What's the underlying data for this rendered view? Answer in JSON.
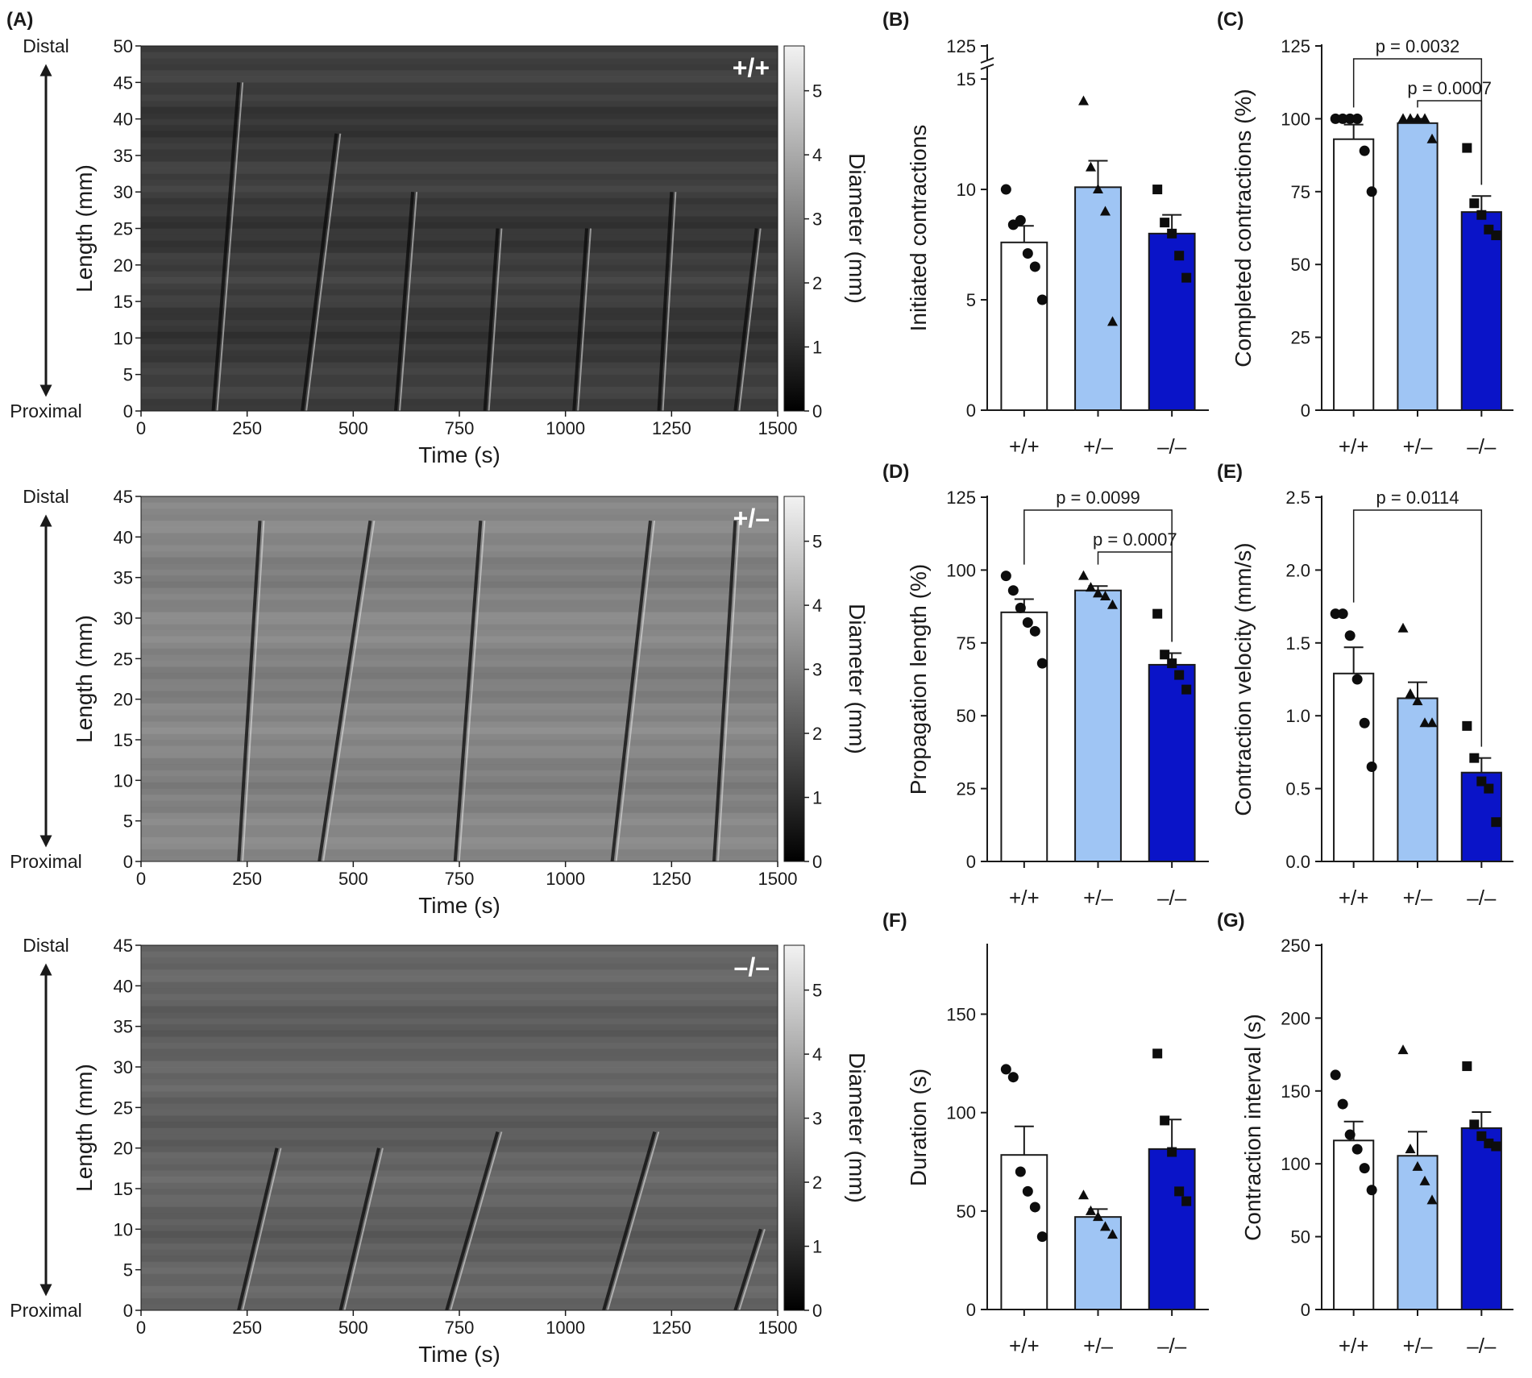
{
  "colors": {
    "wt": "#ffffff",
    "het": "#9fc5f4",
    "ko": "#0a14c8",
    "axis": "#1a1a1a"
  },
  "chart_data": [
    {
      "id": "A-1",
      "panel": "(A)",
      "type": "heatmap",
      "genotype": "+/+",
      "xlabel": "Time (s)",
      "ylabel": "Length (mm)",
      "colorbar_label": "Diameter (mm)",
      "top_label": "Distal",
      "bottom_label": "Proximal",
      "xlim": [
        0,
        1500
      ],
      "ylim": [
        0,
        50
      ],
      "x_ticks": [
        "0",
        "250",
        "500",
        "750",
        "1000",
        "1250",
        "1500"
      ],
      "y_ticks": [
        "0",
        "5",
        "10",
        "15",
        "20",
        "25",
        "30",
        "35",
        "40",
        "45",
        "50"
      ],
      "colorbar_ticks": [
        "0",
        "1",
        "2",
        "3",
        "4",
        "5"
      ],
      "colorbar_range": [
        0,
        5.7
      ],
      "base_level": 1.4,
      "waves": [
        [
          170,
          0,
          230,
          45
        ],
        [
          380,
          0,
          460,
          38
        ],
        [
          600,
          0,
          640,
          30
        ],
        [
          810,
          0,
          840,
          25
        ],
        [
          1020,
          0,
          1050,
          25
        ],
        [
          1220,
          0,
          1250,
          30
        ],
        [
          1400,
          0,
          1450,
          25
        ]
      ]
    },
    {
      "id": "A-2",
      "type": "heatmap",
      "genotype": "+/–",
      "xlabel": "Time (s)",
      "ylabel": "Length (mm)",
      "colorbar_label": "Diameter (mm)",
      "top_label": "Distal",
      "bottom_label": "Proximal",
      "xlim": [
        0,
        1500
      ],
      "ylim": [
        0,
        45
      ],
      "x_ticks": [
        "0",
        "250",
        "500",
        "750",
        "1000",
        "1250",
        "1500"
      ],
      "y_ticks": [
        "0",
        "5",
        "10",
        "15",
        "20",
        "25",
        "30",
        "35",
        "40",
        "45"
      ],
      "colorbar_ticks": [
        "0",
        "1",
        "2",
        "3",
        "4",
        "5"
      ],
      "colorbar_range": [
        0,
        5.7
      ],
      "base_level": 3.1,
      "waves": [
        [
          230,
          0,
          280,
          42
        ],
        [
          420,
          0,
          540,
          42
        ],
        [
          740,
          0,
          800,
          42
        ],
        [
          1110,
          0,
          1200,
          42
        ],
        [
          1350,
          0,
          1400,
          42
        ]
      ]
    },
    {
      "id": "A-3",
      "type": "heatmap",
      "genotype": "–/–",
      "xlabel": "Time (s)",
      "ylabel": "Length (mm)",
      "colorbar_label": "Diameter (mm)",
      "top_label": "Distal",
      "bottom_label": "Proximal",
      "xlim": [
        0,
        1500
      ],
      "ylim": [
        0,
        45
      ],
      "x_ticks": [
        "0",
        "250",
        "500",
        "750",
        "1000",
        "1250",
        "1500"
      ],
      "y_ticks": [
        "0",
        "5",
        "10",
        "15",
        "20",
        "25",
        "30",
        "35",
        "40",
        "45"
      ],
      "colorbar_ticks": [
        "0",
        "1",
        "2",
        "3",
        "4",
        "5"
      ],
      "colorbar_range": [
        0,
        5.7
      ],
      "base_level": 2.3,
      "waves": [
        [
          230,
          0,
          320,
          20
        ],
        [
          470,
          0,
          560,
          20
        ],
        [
          720,
          0,
          840,
          22
        ],
        [
          1090,
          0,
          1210,
          22
        ],
        [
          1400,
          0,
          1460,
          10
        ]
      ]
    },
    {
      "id": "B",
      "panel": "(B)",
      "type": "bar",
      "ylabel": "Initiated contractions",
      "categories": [
        "+/+",
        "+/–",
        "–/–"
      ],
      "values": [
        7.6,
        10.1,
        8.0
      ],
      "sem": [
        0.75,
        1.2,
        0.85
      ],
      "points": [
        [
          10.0,
          8.4,
          8.6,
          7.1,
          6.5,
          5.0
        ],
        [
          14.0,
          11.0,
          10.0,
          9.0,
          4.0
        ],
        [
          10.0,
          8.5,
          8.0,
          7.0,
          6.0
        ]
      ],
      "ylim": [
        0,
        16.5
      ],
      "broken_axis": true,
      "y_ticks": [
        [
          "0",
          0
        ],
        [
          "5",
          5
        ],
        [
          "10",
          10
        ],
        [
          "15",
          15
        ],
        [
          "125",
          16.5
        ]
      ]
    },
    {
      "id": "C",
      "panel": "(C)",
      "type": "bar",
      "ylabel": "Completed contractions (%)",
      "categories": [
        "+/+",
        "+/–",
        "–/–"
      ],
      "values": [
        93.0,
        98.5,
        68.0
      ],
      "sem": [
        5.0,
        1.5,
        5.5
      ],
      "points": [
        [
          100,
          100,
          100,
          100,
          89,
          75
        ],
        [
          100,
          100,
          100,
          100,
          93
        ],
        [
          90,
          71,
          67,
          62,
          60
        ]
      ],
      "ylim": [
        0,
        125
      ],
      "y_ticks": [
        [
          "0",
          0
        ],
        [
          "25",
          25
        ],
        [
          "50",
          50
        ],
        [
          "75",
          75
        ],
        [
          "100",
          100
        ],
        [
          "125",
          125
        ]
      ],
      "comparisons": [
        {
          "from": 0,
          "to": 2,
          "label": "p = 0.0032",
          "level": 0
        },
        {
          "from": 1,
          "to": 2,
          "label": "p = 0.0007",
          "level": 1
        }
      ]
    },
    {
      "id": "D",
      "panel": "(D)",
      "type": "bar",
      "ylabel": "Propagation length (%)",
      "categories": [
        "+/+",
        "+/–",
        "–/–"
      ],
      "values": [
        85.5,
        93.0,
        67.5
      ],
      "sem": [
        4.5,
        1.5,
        4.0
      ],
      "points": [
        [
          98,
          93,
          87,
          82,
          79,
          68
        ],
        [
          98,
          94,
          92,
          91,
          88
        ],
        [
          85,
          71,
          68,
          64,
          59
        ]
      ],
      "ylim": [
        0,
        125
      ],
      "y_ticks": [
        [
          "0",
          0
        ],
        [
          "25",
          25
        ],
        [
          "50",
          50
        ],
        [
          "75",
          75
        ],
        [
          "100",
          100
        ],
        [
          "125",
          125
        ]
      ],
      "comparisons": [
        {
          "from": 0,
          "to": 2,
          "label": "p = 0.0099",
          "level": 0
        },
        {
          "from": 1,
          "to": 2,
          "label": "p = 0.0007",
          "level": 1
        }
      ]
    },
    {
      "id": "E",
      "panel": "(E)",
      "type": "bar",
      "ylabel": "Contraction velocity (mm/s)",
      "categories": [
        "+/+",
        "+/–",
        "–/–"
      ],
      "values": [
        1.29,
        1.12,
        0.61
      ],
      "sem": [
        0.18,
        0.11,
        0.1
      ],
      "points": [
        [
          1.7,
          1.7,
          1.55,
          1.25,
          0.95,
          0.65
        ],
        [
          1.6,
          1.15,
          1.1,
          0.95,
          0.95
        ],
        [
          0.93,
          0.71,
          0.55,
          0.5,
          0.27
        ]
      ],
      "ylim": [
        0,
        2.5
      ],
      "y_ticks": [
        [
          "0.0",
          0
        ],
        [
          "0.5",
          0.5
        ],
        [
          "1.0",
          1.0
        ],
        [
          "1.5",
          1.5
        ],
        [
          "2.0",
          2.0
        ],
        [
          "2.5",
          2.5
        ]
      ],
      "comparisons": [
        {
          "from": 0,
          "to": 2,
          "label": "p = 0.0114",
          "level": 0
        }
      ]
    },
    {
      "id": "F",
      "panel": "(F)",
      "type": "bar",
      "ylabel": "Duration (s)",
      "categories": [
        "+/+",
        "+/–",
        "–/–"
      ],
      "values": [
        78.5,
        47.0,
        81.5
      ],
      "sem": [
        14.5,
        4.0,
        15.0
      ],
      "points": [
        [
          122,
          118,
          70,
          60,
          52,
          37
        ],
        [
          58,
          50,
          47,
          42,
          38
        ],
        [
          130,
          96,
          80,
          60,
          55
        ]
      ],
      "ylim": [
        0,
        185
      ],
      "y_ticks": [
        [
          "0",
          0
        ],
        [
          "50",
          50
        ],
        [
          "100",
          100
        ],
        [
          "150",
          150
        ]
      ],
      "comparisons": []
    },
    {
      "id": "G",
      "panel": "(G)",
      "type": "bar",
      "ylabel": "Contraction interval (s)",
      "categories": [
        "+/+",
        "+/–",
        "–/–"
      ],
      "values": [
        116.0,
        105.5,
        124.5
      ],
      "sem": [
        13.0,
        16.5,
        11.0
      ],
      "points": [
        [
          161,
          141,
          120,
          110,
          97,
          82
        ],
        [
          178,
          110,
          98,
          88,
          75
        ],
        [
          167,
          127,
          119,
          114,
          112
        ]
      ],
      "ylim": [
        0,
        250
      ],
      "y_ticks": [
        [
          "0",
          0
        ],
        [
          "50",
          50
        ],
        [
          "100",
          100
        ],
        [
          "150",
          150
        ],
        [
          "200",
          200
        ],
        [
          "250",
          250
        ]
      ],
      "comparisons": []
    }
  ]
}
